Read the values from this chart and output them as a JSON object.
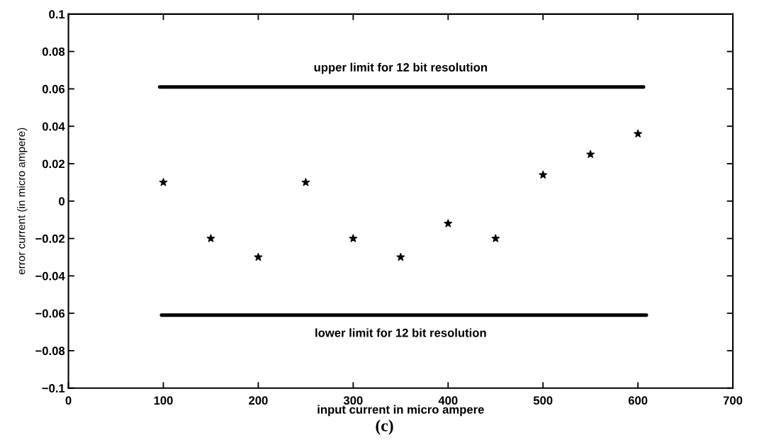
{
  "chart_data": {
    "type": "scatter",
    "xlabel": "input current in micro ampere",
    "ylabel": "error current (in micro ampere)",
    "x": [
      100,
      150,
      200,
      250,
      300,
      350,
      400,
      450,
      500,
      550,
      600
    ],
    "series": [
      {
        "color": "#000000",
        "marker": "star",
        "values": [
          0.01,
          -0.02,
          -0.03,
          0.01,
          -0.02,
          -0.03,
          -0.012,
          -0.02,
          0.014,
          0.025,
          0.036
        ]
      },
      {
        "type": "line",
        "color": "#000000",
        "marker": "none",
        "line_style": "solid",
        "x": [
          96,
          606
        ],
        "values": [
          0.061,
          0.061
        ]
      },
      {
        "type": "line",
        "color": "#000000",
        "marker": "none",
        "line_style": "solid",
        "x": [
          98,
          609
        ],
        "values": [
          -0.061,
          -0.061
        ]
      }
    ],
    "annotations": [
      "upper limit for 12 bit resolution",
      "lower limit for 12 bit resolution",
      "(c)"
    ],
    "xlim": [
      0,
      700
    ],
    "xticks": [
      0,
      100,
      200,
      300,
      400,
      500,
      600,
      700
    ],
    "ylim": [
      -0.1,
      0.1
    ],
    "yticks": [
      {
        "value": -0.1,
        "label": "−0.1"
      },
      {
        "value": -0.08,
        "label": "−0.08"
      },
      {
        "value": -0.06,
        "label": "−0.06"
      },
      {
        "value": -0.04,
        "label": "−0.04"
      },
      {
        "value": -0.02,
        "label": "−0.02"
      },
      0,
      0.02,
      0.04,
      0.06,
      0.08,
      0.1
    ],
    "grid": false,
    "legend": false
  }
}
